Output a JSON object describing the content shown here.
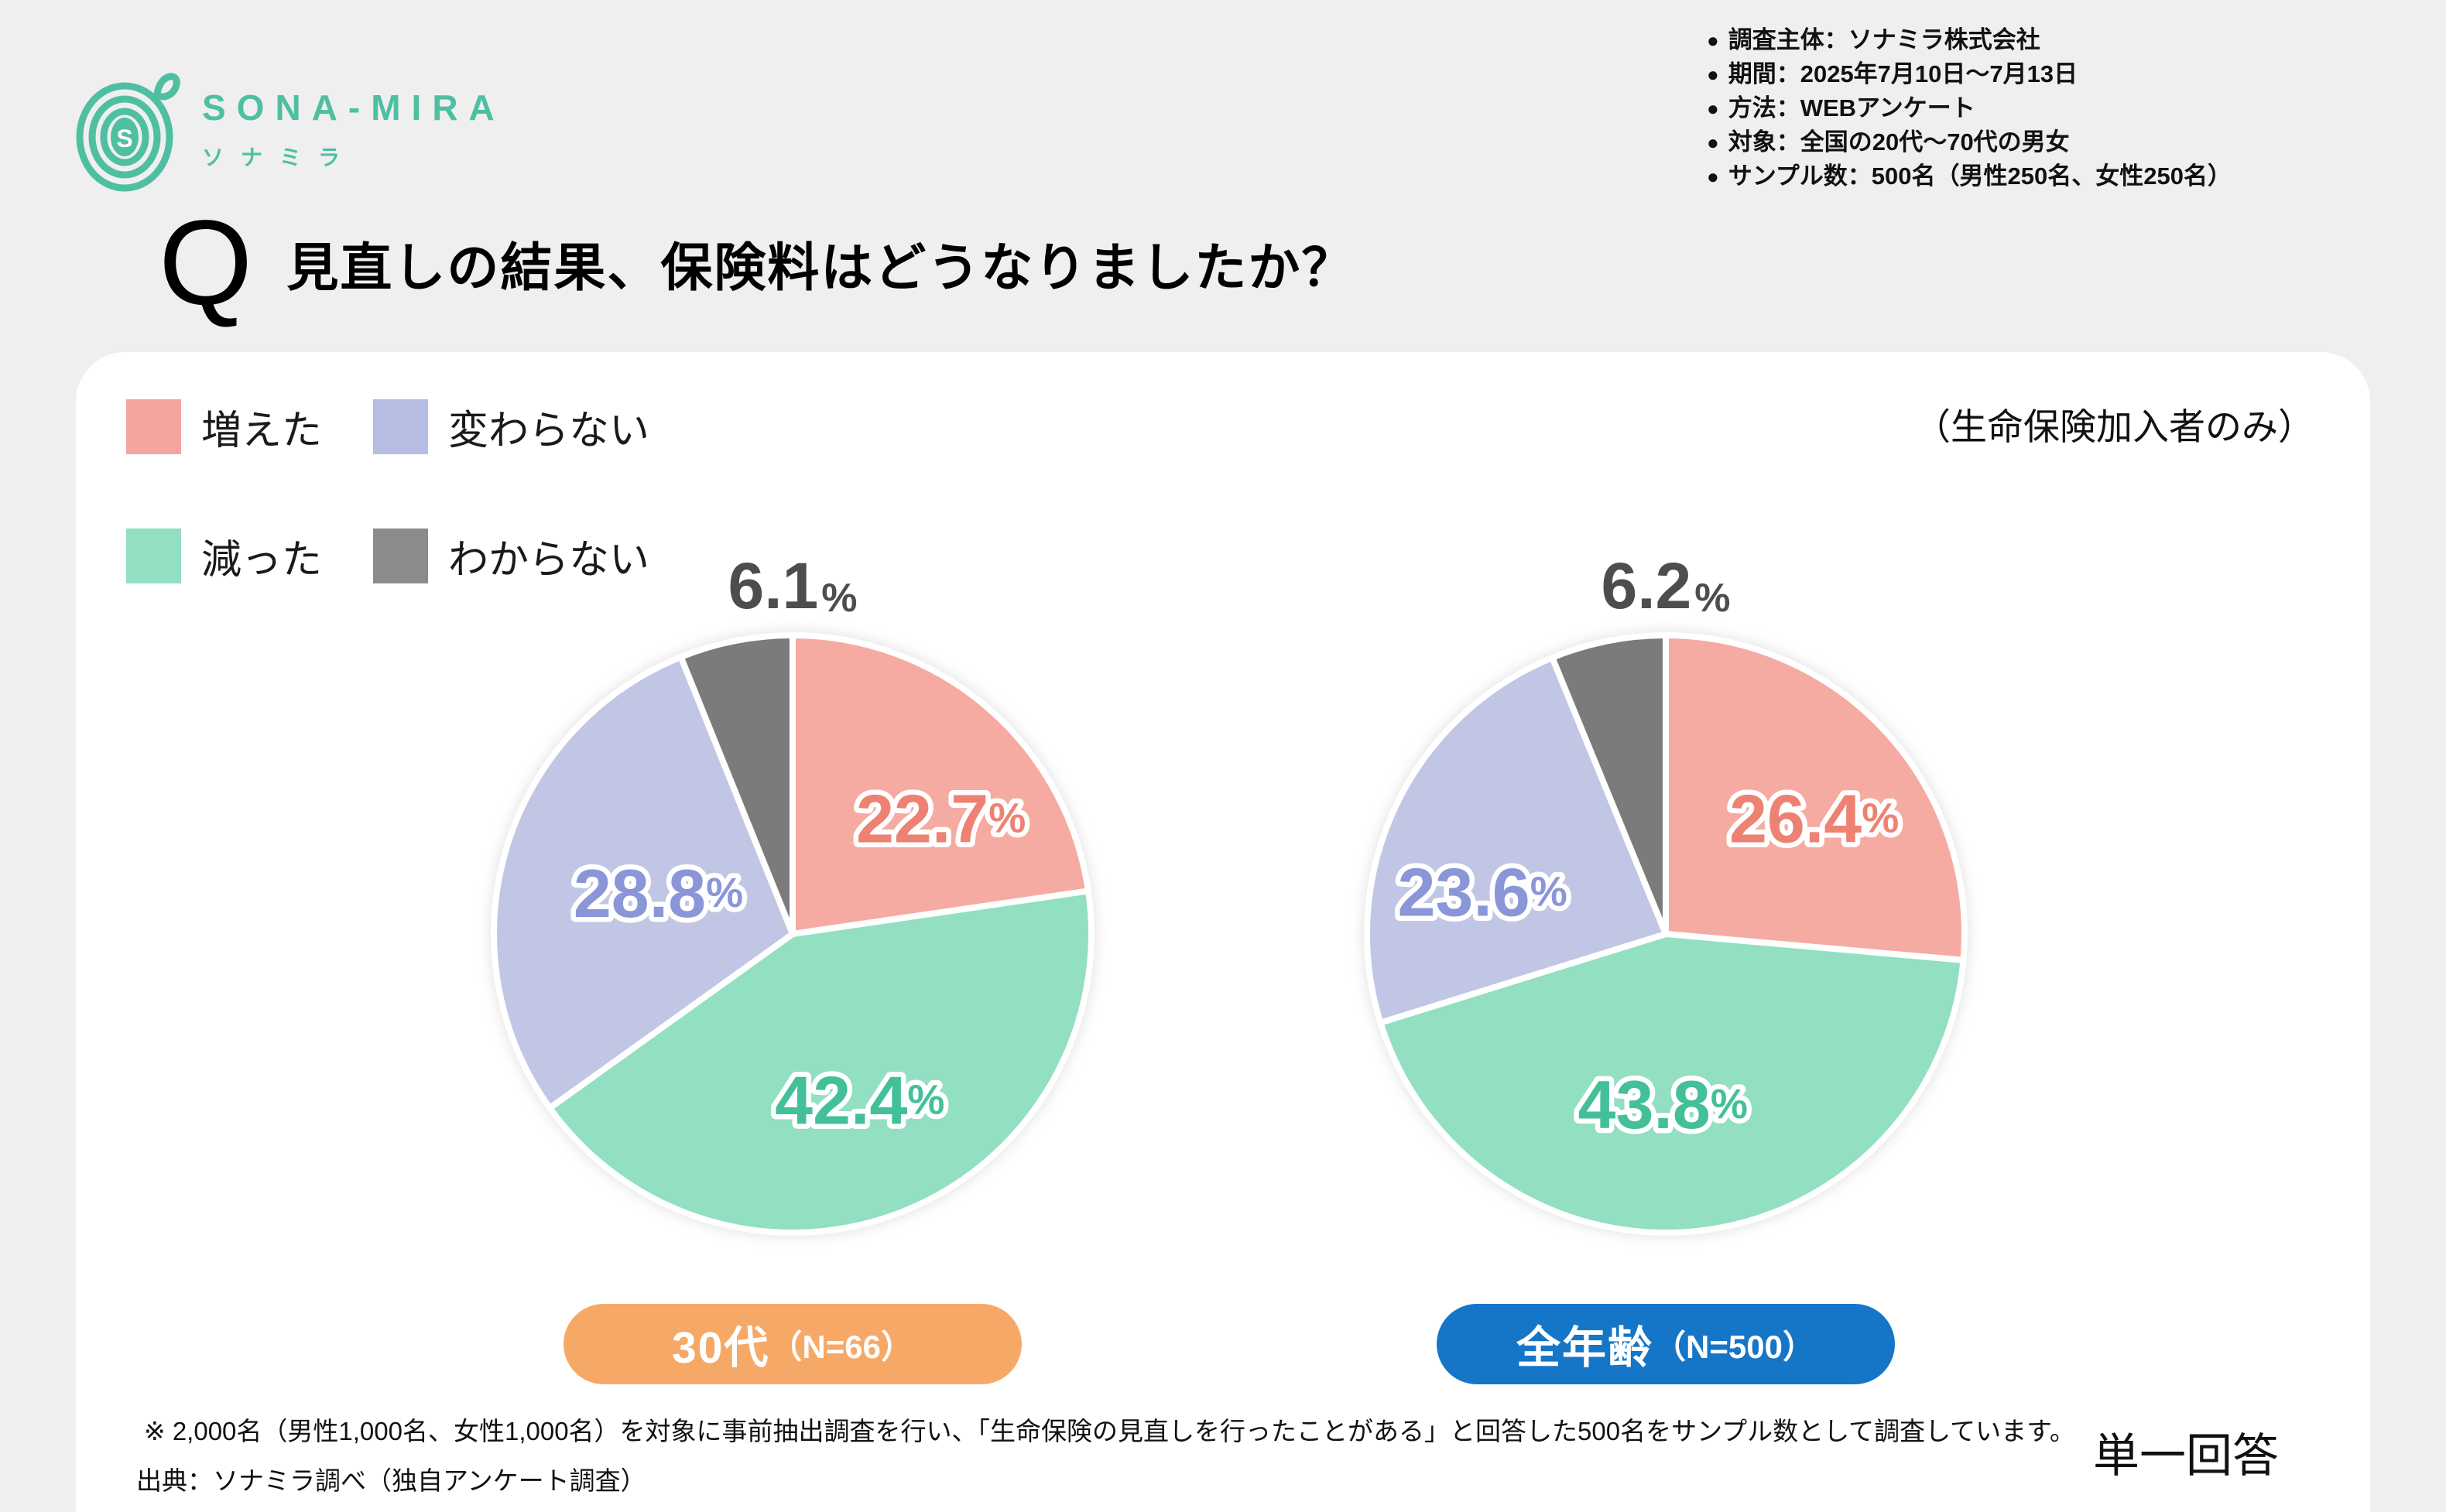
{
  "brand": {
    "name": "SONA-MIRA",
    "tagline": "ソナミラ",
    "logo_letter": "S",
    "color": "#4fbfa2"
  },
  "survey_meta": {
    "bullet_icon": "●",
    "items": [
      "調査主体：ソナミラ株式会社",
      "期間：2025年7月10日～7月13日",
      "方法：WEBアンケート",
      "対象：全国の20代～70代の男女",
      "サンプル数：500名（男性250名、女性250名）"
    ]
  },
  "question": {
    "prefix": "Q",
    "title": "見直しの結果、保険料はどうなりましたか？"
  },
  "panel": {
    "scope_note": "（生命保険加入者のみ）",
    "answer_type": "単一回答",
    "footnote": "※ 2,000名（男性1,000名、女性1,000名）を対象に事前抽出調査を行い、「生命保険の見直しを行ったことがある」と回答した500名をサンプル数として調査しています。",
    "source": "出典：ソナミラ調べ（独自アンケート調査）"
  },
  "legend": {
    "items": [
      {
        "label": "増えた",
        "color": "#f4a69d"
      },
      {
        "label": "変わらない",
        "color": "#b5bde3"
      },
      {
        "label": "減った",
        "color": "#92dfc2"
      },
      {
        "label": "わからない",
        "color": "#8b8b8b"
      }
    ]
  },
  "percent_sign": "%",
  "chart_data": [
    {
      "type": "pie",
      "group_label": "30代",
      "n_label": "（N=66）",
      "badge_color": "#f6a966",
      "categories": [
        "増えた",
        "減った",
        "変わらない",
        "わからない"
      ],
      "values": [
        22.7,
        42.4,
        28.8,
        6.1
      ],
      "slice_colors": [
        "#f5aba1",
        "#92dfc2",
        "#c2c6e5",
        "#7b7b7b"
      ],
      "label_colors": [
        "#ee8272",
        "#43c09a",
        "#8b96d8",
        "#4d4d4d"
      ],
      "start_angle_deg": 0,
      "direction": "clockwise",
      "outside_label_index": 3
    },
    {
      "type": "pie",
      "group_label": "全年齢",
      "n_label": "（N=500）",
      "badge_color": "#1576c8",
      "categories": [
        "増えた",
        "減った",
        "変わらない",
        "わからない"
      ],
      "values": [
        26.4,
        43.8,
        23.6,
        6.2
      ],
      "slice_colors": [
        "#f5aba1",
        "#92dfc2",
        "#c2c6e5",
        "#7b7b7b"
      ],
      "label_colors": [
        "#ee8272",
        "#43c09a",
        "#8b96d8",
        "#4d4d4d"
      ],
      "start_angle_deg": 0,
      "direction": "clockwise",
      "outside_label_index": 3
    }
  ]
}
